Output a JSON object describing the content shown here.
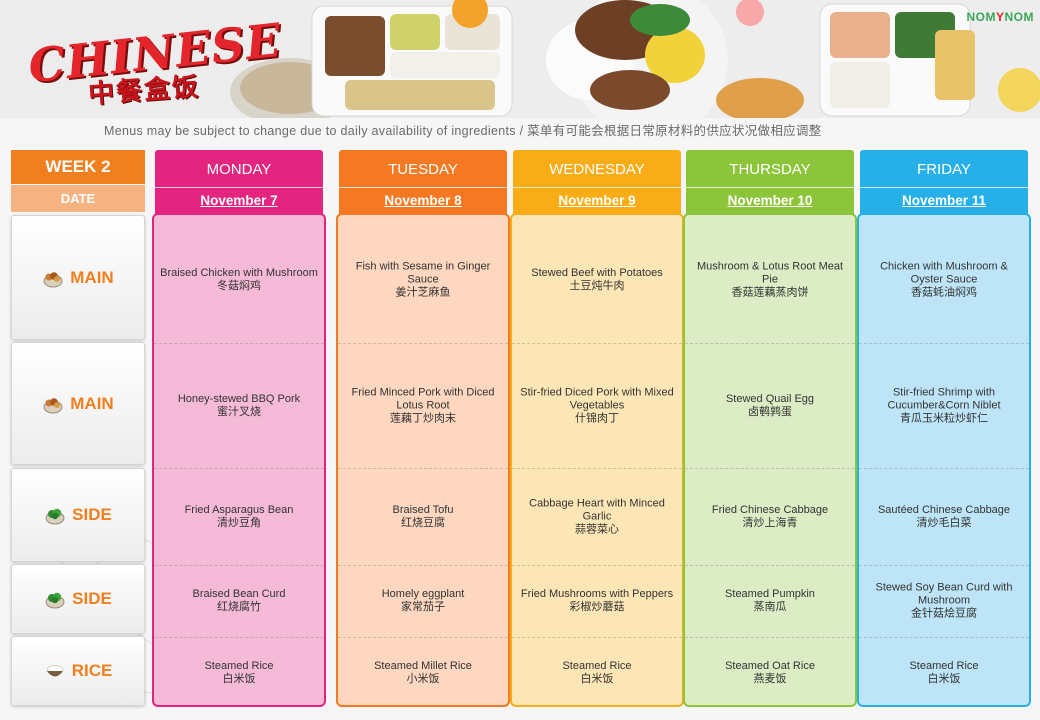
{
  "header": {
    "logo_en": "CHINESE",
    "logo_cn": "中餐盒饭",
    "brand_left": "NOM",
    "brand_mark": "Y",
    "brand_right": "NOM",
    "notice": "Menus may be subject to change due to daily availability of ingredients / 菜单有可能会根据日常原材料的供应状况做相应调整"
  },
  "week_label": "WEEK 2",
  "date_label": "DATE",
  "rows": [
    {
      "label": "MAIN",
      "icon": "food-bowl-icon"
    },
    {
      "label": "MAIN",
      "icon": "food-bowl-icon"
    },
    {
      "label": "SIDE",
      "icon": "vegetable-bowl-icon"
    },
    {
      "label": "SIDE",
      "icon": "vegetable-bowl-icon"
    },
    {
      "label": "RICE",
      "icon": "rice-bowl-icon"
    }
  ],
  "days": [
    {
      "name": "MONDAY",
      "date": "November 7",
      "color": "#e4257f",
      "dishes": [
        {
          "en": "Braised Chicken with Mushroom",
          "cn": "冬菇焖鸡"
        },
        {
          "en": "Honey-stewed BBQ Pork",
          "cn": "蜜汁叉烧"
        },
        {
          "en": "Fried Asparagus Bean",
          "cn": "清炒豆角"
        },
        {
          "en": "Braised Bean Curd",
          "cn": "红烧腐竹"
        },
        {
          "en": "Steamed Rice",
          "cn": "白米饭"
        }
      ]
    },
    {
      "name": "TUESDAY",
      "date": "November 8",
      "color": "#f57822",
      "dishes": [
        {
          "en": "Fish with Sesame in Ginger Sauce",
          "cn": "姜汁芝麻鱼"
        },
        {
          "en": "Fried Minced Pork with Diced Lotus Root",
          "cn": "莲藕丁炒肉末"
        },
        {
          "en": "Braised Tofu",
          "cn": "红烧豆腐"
        },
        {
          "en": "Homely eggplant",
          "cn": "家常茄子"
        },
        {
          "en": "Steamed Millet Rice",
          "cn": "小米饭"
        }
      ]
    },
    {
      "name": "WEDNESDAY",
      "date": "November 9",
      "color": "#f8ad16",
      "dishes": [
        {
          "en": "Stewed Beef with Potatoes",
          "cn": "土豆炖牛肉"
        },
        {
          "en": "Stir-fried Diced Pork with Mixed Vegetables",
          "cn": "什锦肉丁"
        },
        {
          "en": "Cabbage Heart with Minced Garlic",
          "cn": "蒜蓉菜心"
        },
        {
          "en": "Fried Mushrooms with Peppers",
          "cn": "彩椒炒蘑菇"
        },
        {
          "en": "Steamed Rice",
          "cn": "白米饭"
        }
      ]
    },
    {
      "name": "THURSDAY",
      "date": "November 10",
      "color": "#8cc43a",
      "dishes": [
        {
          "en": "Mushroom & Lotus Root Meat Pie",
          "cn": "香菇莲藕蒸肉饼"
        },
        {
          "en": "Stewed Quail Egg",
          "cn": "卤鹌鹑蛋"
        },
        {
          "en": "Fried Chinese Cabbage",
          "cn": "清炒上海青"
        },
        {
          "en": "Steamed Pumpkin",
          "cn": "蒸南瓜"
        },
        {
          "en": "Steamed Oat Rice",
          "cn": "燕麦饭"
        }
      ]
    },
    {
      "name": "FRIDAY",
      "date": "November 11",
      "color": "#27b0e8",
      "dishes": [
        {
          "en": "Chicken with Mushroom & Oyster Sauce",
          "cn": "香菇蚝油焖鸡"
        },
        {
          "en": "Stir-fried Shrimp with Cucumber&Corn Niblet",
          "cn": "青瓜玉米粒炒虾仁"
        },
        {
          "en": "Sautéed Chinese Cabbage",
          "cn": "清炒毛白菜"
        },
        {
          "en": "Stewed Soy Bean Curd with Mushroom",
          "cn": "金针菇烩豆腐"
        },
        {
          "en": "Steamed Rice",
          "cn": "白米饭"
        }
      ]
    }
  ]
}
